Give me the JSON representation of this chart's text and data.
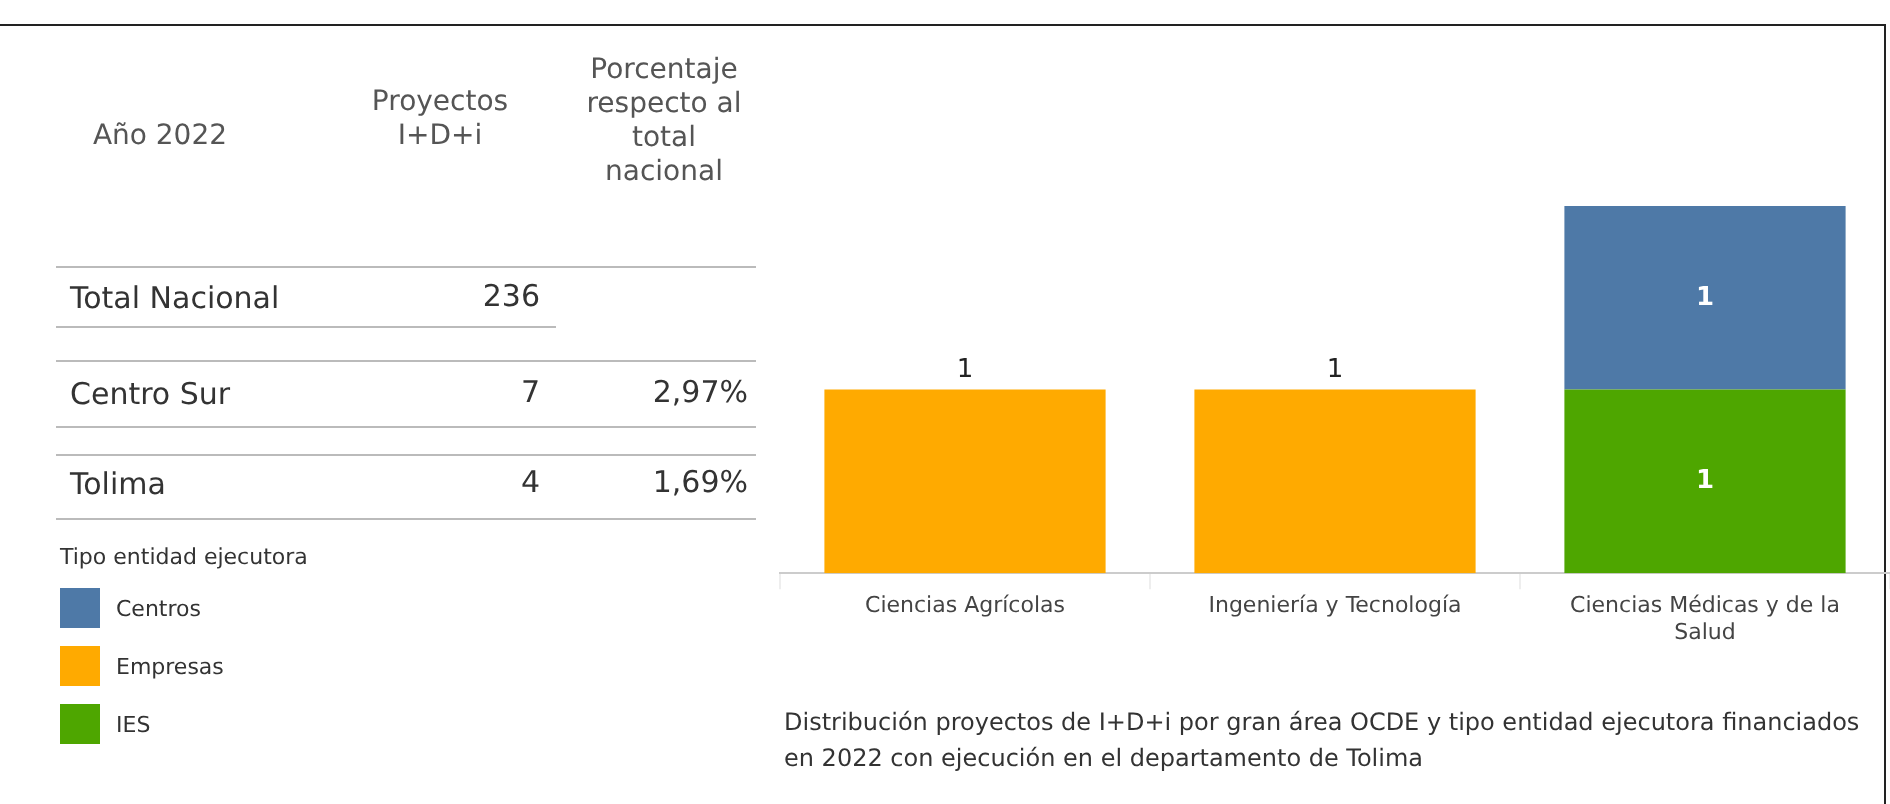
{
  "chart_data": [
    {
      "type": "other",
      "annotations": [
        "Año 2022",
        "Proyectos I+D+i",
        "Porcentaje respecto al total nacional",
        "Total Nacional",
        "236",
        "Centro Sur",
        "7",
        "2,97%",
        "Tolima",
        "4",
        "1,69%"
      ]
    },
    {
      "type": "bar",
      "stacked": true,
      "categories": [
        "Ciencias Agrícolas",
        "Ingeniería y Tecnología",
        "Ciencias Médicas y de la Salud"
      ],
      "series": [
        {
          "name": "IES",
          "color": "#4ea600",
          "values": [
            null,
            null,
            1
          ]
        },
        {
          "name": "Empresas",
          "color": "#ffaa00",
          "values": [
            1,
            1,
            null
          ]
        },
        {
          "name": "Centros",
          "color": "#4e79a7",
          "values": [
            null,
            null,
            1
          ]
        }
      ],
      "data_labels": true,
      "legend": "bottom left",
      "legend_title": "Tipo entidad ejecutora",
      "annotations": [
        "Distribución proyectos de I+D+i por gran área OCDE y tipo entidad ejecutora financiados en 2022 con ejecución en el departamento de Tolima"
      ]
    }
  ]
}
